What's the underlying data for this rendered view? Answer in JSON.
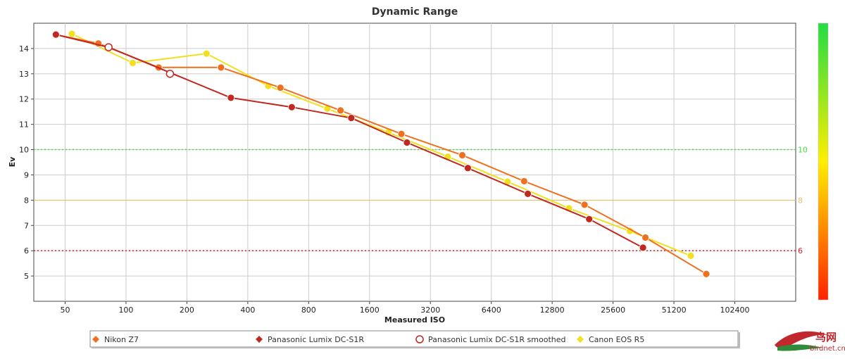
{
  "chart_data": {
    "type": "line",
    "title": "Dynamic Range",
    "xlabel": "Measured ISO",
    "ylabel": "Ev",
    "x_scale": "log2",
    "xlim": [
      35,
      204800
    ],
    "ylim": [
      4,
      15
    ],
    "x_ticks": [
      50,
      100,
      200,
      400,
      800,
      1600,
      3200,
      6400,
      12800,
      25600,
      51200,
      102400
    ],
    "x_tick_labels": [
      "50",
      "100",
      "200",
      "400",
      "800",
      "1600",
      "3200",
      "6400",
      "12800",
      "25600",
      "51200",
      "102400"
    ],
    "y_ticks": [
      5,
      6,
      7,
      8,
      9,
      10,
      11,
      12,
      13,
      14
    ],
    "y_tick_labels": [
      "5",
      "6",
      "7",
      "8",
      "9",
      "10",
      "11",
      "12",
      "13",
      "14"
    ],
    "reference_lines": [
      {
        "y": 10,
        "label": "10",
        "color": "#44dd44",
        "style": "dotted"
      },
      {
        "y": 8,
        "label": "8",
        "color": "#e8c060",
        "style": "solid"
      },
      {
        "y": 6,
        "label": "6",
        "color": "#e02020",
        "style": "dotted"
      }
    ],
    "color_bar": {
      "top_color": "#22dd44",
      "mid_color": "#ffee00",
      "bottom_color": "#ff2200"
    },
    "series": [
      {
        "name": "Nikon Z7",
        "color": "#f07020",
        "marker": "filled",
        "x": [
          45,
          73,
          145,
          295,
          580,
          1150,
          2300,
          4600,
          9300,
          18500,
          37000,
          74000
        ],
        "y": [
          14.55,
          14.2,
          13.25,
          13.25,
          12.45,
          11.55,
          10.62,
          9.78,
          8.75,
          7.82,
          6.52,
          5.08
        ]
      },
      {
        "name": "Panasonic Lumix DC-S1R",
        "color": "#c02820",
        "marker": "filled",
        "x": [
          45,
          82,
          330,
          660,
          1300,
          2450,
          4900,
          9700,
          19500,
          36000
        ],
        "y": [
          14.55,
          14.05,
          12.05,
          11.68,
          11.25,
          10.28,
          9.27,
          8.25,
          7.25,
          6.12
        ]
      },
      {
        "name": "Panasonic Lumix DC-S1R smoothed",
        "color": "#c02820",
        "marker": "hollow",
        "x": [
          82,
          165
        ],
        "y": [
          14.05,
          13.0
        ]
      },
      {
        "name": "Canon EOS R5",
        "color": "#f0e020",
        "marker": "filled",
        "x": [
          54,
          108,
          250,
          505,
          990,
          1980,
          3900,
          7700,
          15500,
          31000,
          62000
        ],
        "y": [
          14.58,
          13.43,
          13.8,
          12.52,
          11.62,
          10.68,
          9.72,
          8.73,
          7.68,
          6.78,
          5.8
        ]
      }
    ]
  },
  "watermark": {
    "chinese": "鸟网",
    "domain": "birdnet.cn"
  }
}
